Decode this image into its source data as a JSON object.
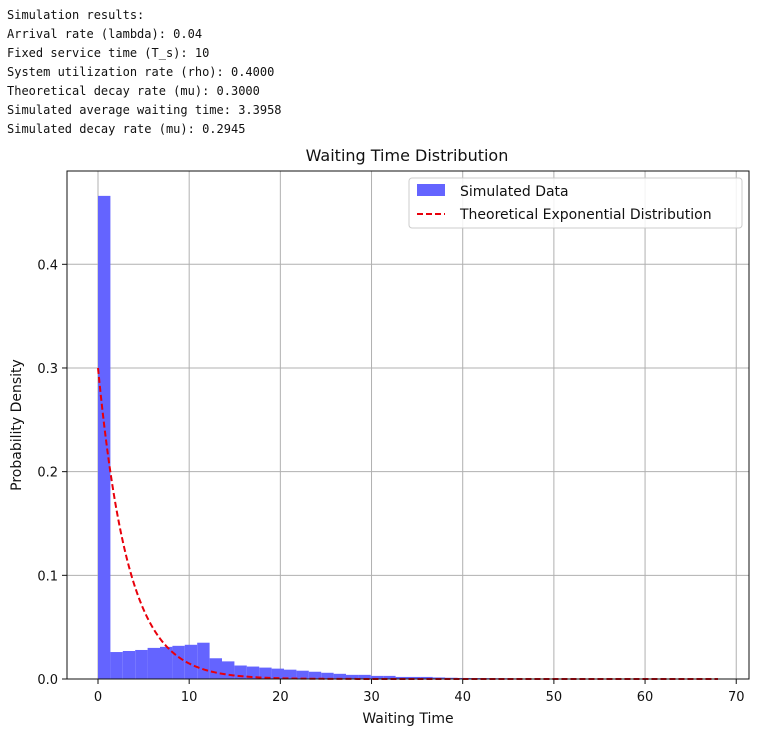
{
  "output_lines": [
    "Simulation results:",
    "Arrival rate (lambda): 0.04",
    "Fixed service time (T_s): 10",
    "System utilization rate (rho): 0.4000",
    "Theoretical decay rate (mu): 0.3000",
    "Simulated average waiting time: 3.3958",
    "Simulated decay rate (mu): 0.2945"
  ],
  "chart_data": {
    "type": "bar",
    "title": "Waiting Time Distribution",
    "xlabel": "Waiting Time",
    "ylabel": "Probability Density",
    "xlim": [
      -3.4,
      71.4
    ],
    "ylim": [
      0,
      0.49
    ],
    "xticks": [
      0,
      10,
      20,
      30,
      40,
      50,
      60,
      70
    ],
    "yticks": [
      0.0,
      0.1,
      0.2,
      0.3,
      0.4
    ],
    "ytick_labels": [
      "0.0",
      "0.1",
      "0.2",
      "0.3",
      "0.4"
    ],
    "grid": true,
    "legend": "top-right",
    "colors": {
      "histogram": "#6464ff",
      "theory": "#e8000b"
    },
    "series": [
      {
        "name": "Simulated Data",
        "kind": "histogram",
        "bin_width": 1.36,
        "bin_start": 0,
        "values": [
          0.466,
          0.026,
          0.027,
          0.028,
          0.03,
          0.031,
          0.032,
          0.033,
          0.035,
          0.02,
          0.017,
          0.013,
          0.012,
          0.011,
          0.01,
          0.009,
          0.008,
          0.007,
          0.006,
          0.005,
          0.004,
          0.004,
          0.003,
          0.003,
          0.002,
          0.002,
          0.002,
          0.0015,
          0.0012,
          0.001,
          0.0009,
          0.0008,
          0.0007,
          0.0006,
          0.0005,
          0.0004,
          0.0004,
          0.0003,
          0.0003,
          0.0002,
          0.0002,
          0.0002,
          0.0001,
          0.0001,
          0.0001,
          0.0001,
          0.0001,
          0.0001,
          0.0001,
          0.0001
        ]
      },
      {
        "name": "Theoretical Exponential Distribution",
        "kind": "line",
        "style": "dashed",
        "function": "exponential",
        "rate": 0.3,
        "x_range": [
          0,
          68
        ]
      }
    ]
  }
}
